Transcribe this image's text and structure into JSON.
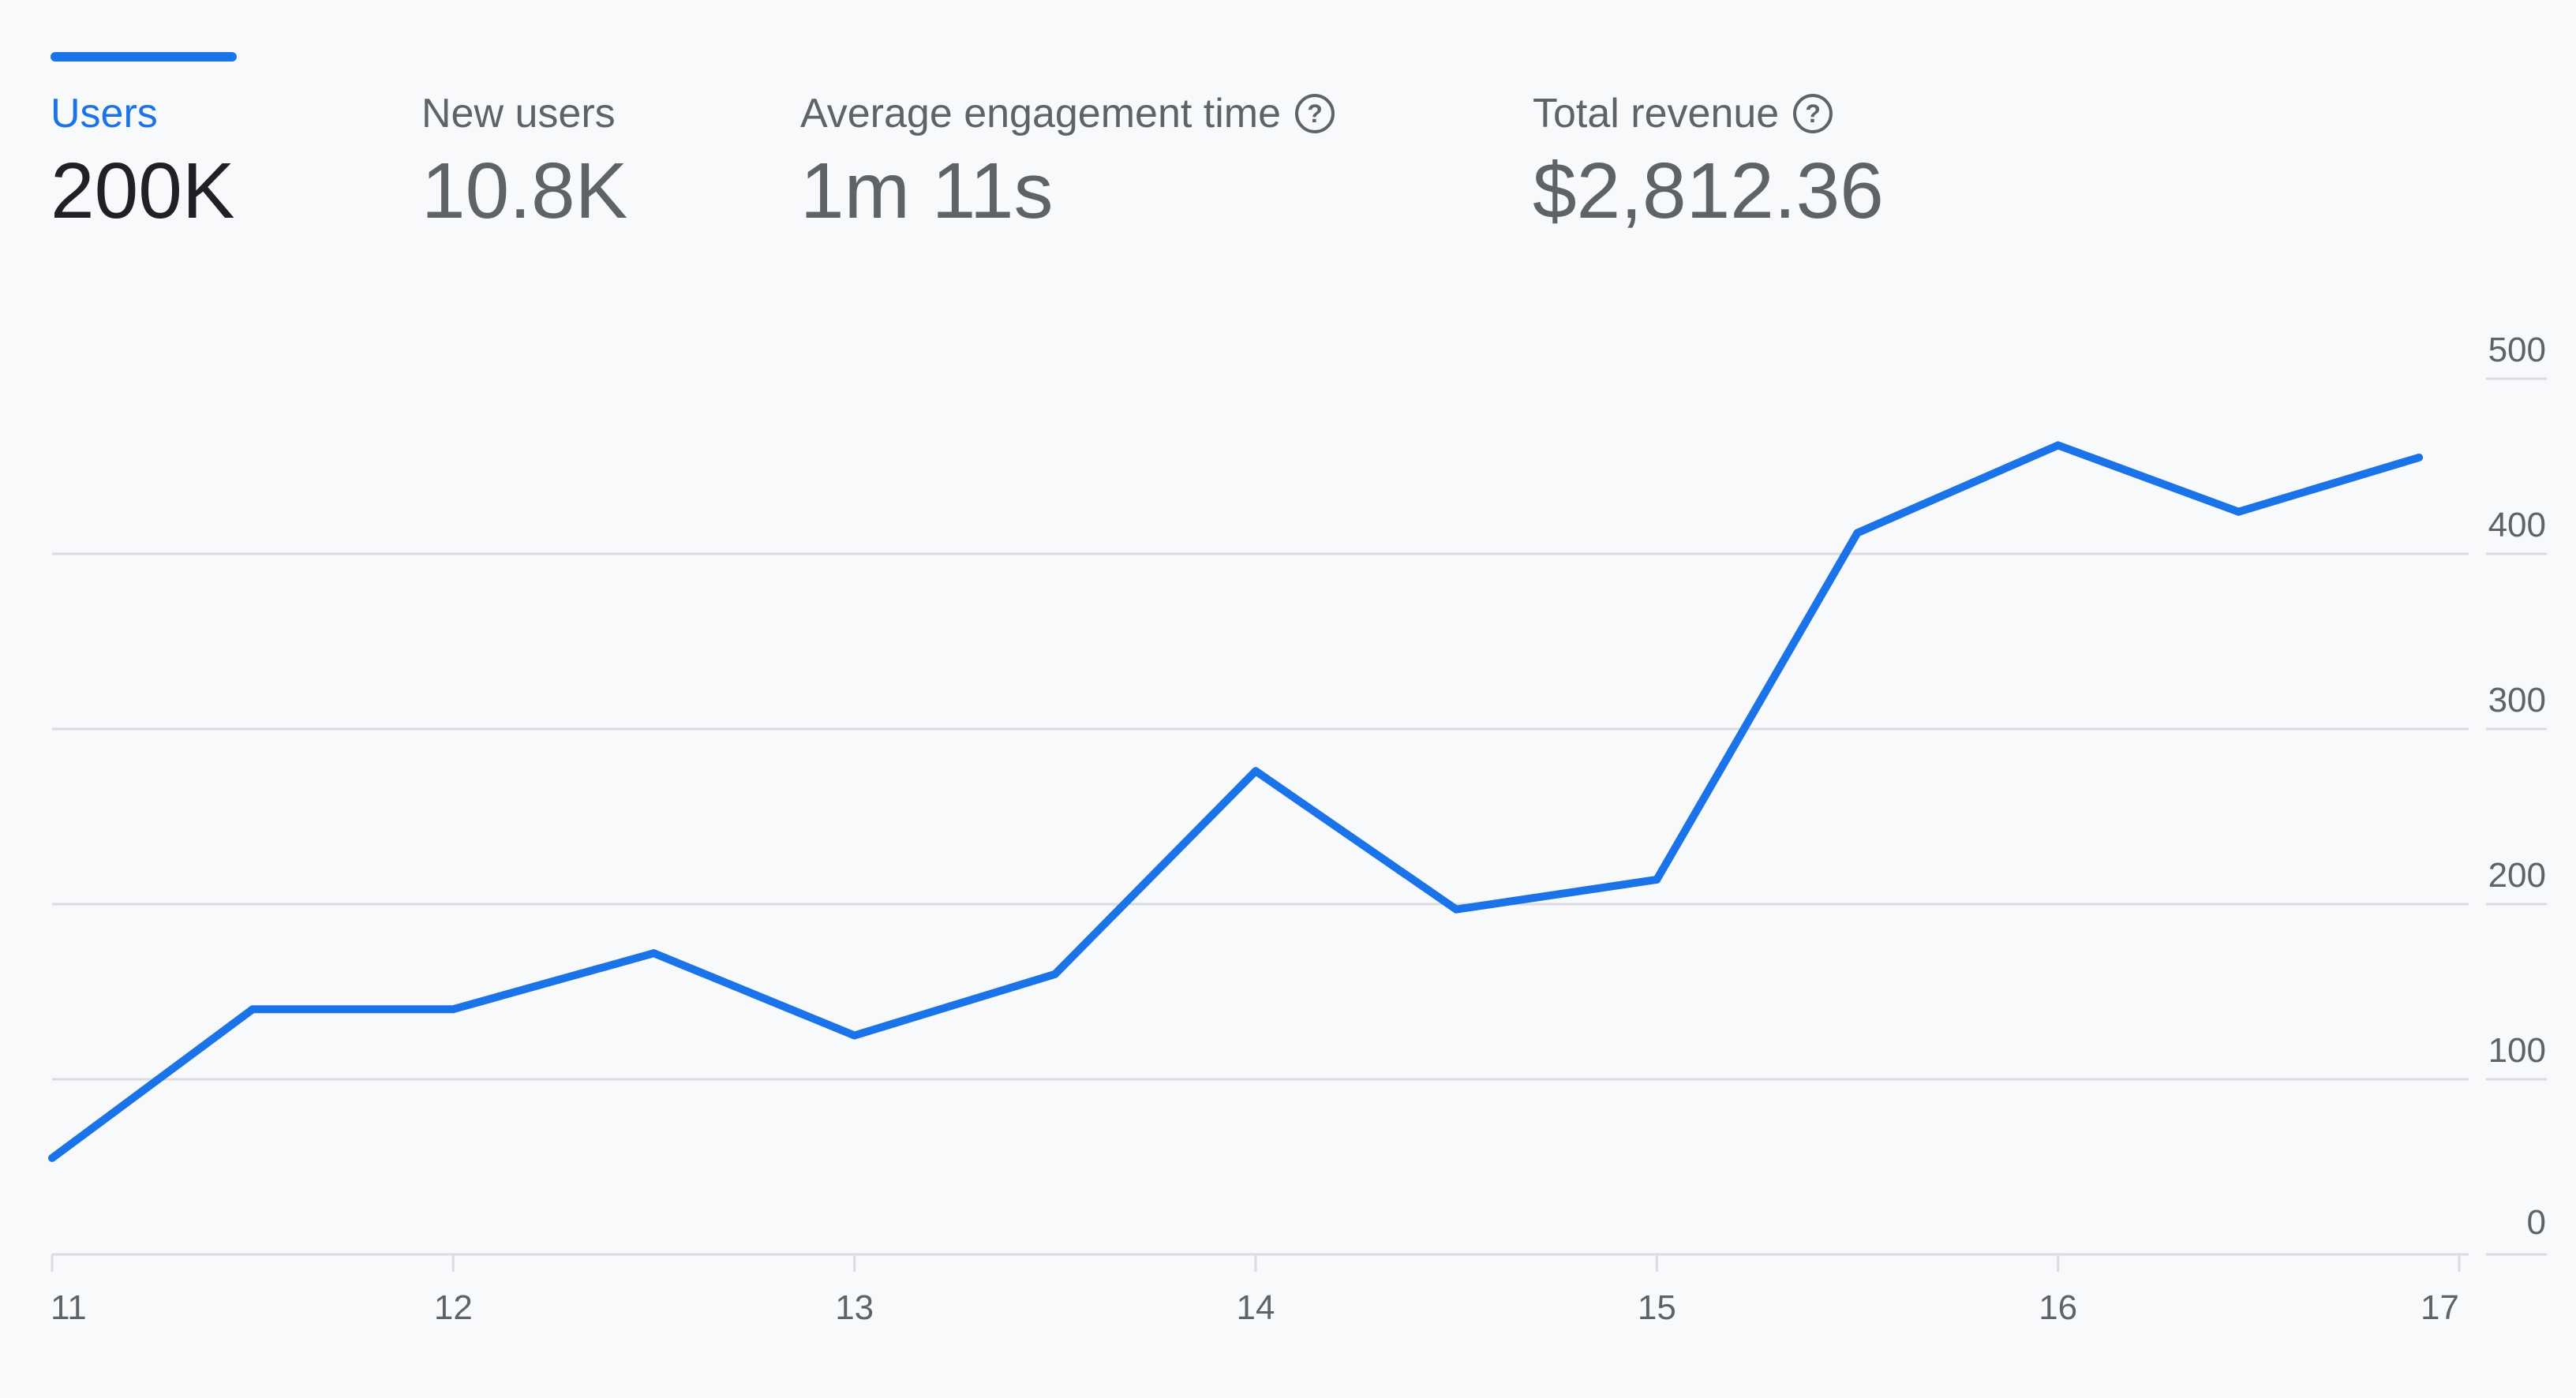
{
  "metrics": [
    {
      "label": "Users",
      "value": "200K",
      "active": true,
      "help": false
    },
    {
      "label": "New users",
      "value": "10.8K",
      "active": false,
      "help": false
    },
    {
      "label": "Average engagement time",
      "value": "1m 11s",
      "active": false,
      "help": true
    },
    {
      "label": "Total revenue",
      "value": "$2,812.36",
      "active": false,
      "help": true
    }
  ],
  "help_icon": {
    "name": "help-circle-icon",
    "glyph": "?"
  },
  "colors": {
    "accent": "#1a73e8",
    "grid": "#dadce0",
    "axis_text": "#5f6368",
    "background": "#f8f9fa"
  },
  "chart_data": {
    "type": "line",
    "x": [
      11,
      11.5,
      12,
      12.5,
      13,
      13.5,
      14,
      14.5,
      15,
      15.5,
      16,
      16.45,
      16.9
    ],
    "series": [
      {
        "values": [
          55,
          140,
          140,
          172,
          125,
          160,
          276,
          197,
          214,
          412,
          462,
          424,
          455
        ]
      }
    ],
    "x_ticks": [
      "11",
      "12",
      "13",
      "14",
      "15",
      "16",
      "17"
    ],
    "y_ticks": [
      "0",
      "100",
      "200",
      "300",
      "400",
      "500"
    ],
    "xlim": [
      11,
      17
    ],
    "ylim": [
      0,
      500
    ],
    "ytick_position": "right",
    "grid": true,
    "title": "",
    "xlabel": "",
    "ylabel": ""
  }
}
